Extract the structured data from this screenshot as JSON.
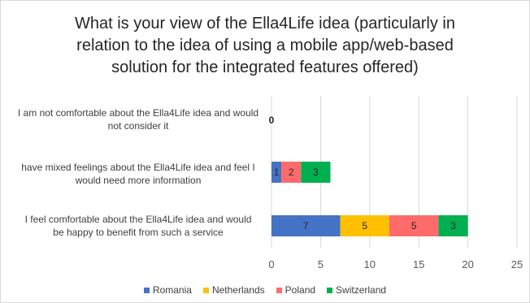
{
  "chart_data": {
    "type": "bar",
    "orientation": "horizontal",
    "stacked": true,
    "title_lines": [
      "What is your view of the Ella4Life idea (particularly in",
      "relation to the idea of using a mobile app/web-based",
      "solution for the integrated features offered)"
    ],
    "categories": [
      {
        "label_lines": [
          "I am not comfortable about the Ella4Life idea and would",
          "not consider it"
        ]
      },
      {
        "label_lines": [
          "have mixed feelings about the Ella4Life idea and feel I",
          "would need more information"
        ]
      },
      {
        "label_lines": [
          "I feel comfortable about the Ella4Life idea and would",
          "be happy to benefit from such a service"
        ]
      }
    ],
    "series": [
      {
        "name": "Romania",
        "color": "#4472c4",
        "values": [
          0,
          1,
          7
        ]
      },
      {
        "name": "Netherlands",
        "color": "#ffc000",
        "values": [
          0,
          0,
          5
        ]
      },
      {
        "name": "Poland",
        "color": "#ff6b6b",
        "values": [
          0,
          2,
          5
        ]
      },
      {
        "name": "Switzerland",
        "color": "#00b050",
        "values": [
          0,
          3,
          3
        ]
      }
    ],
    "xlim": [
      0,
      25
    ],
    "xticks": [
      0,
      5,
      10,
      15,
      20,
      25
    ],
    "grid": true,
    "legend_position": "bottom"
  }
}
